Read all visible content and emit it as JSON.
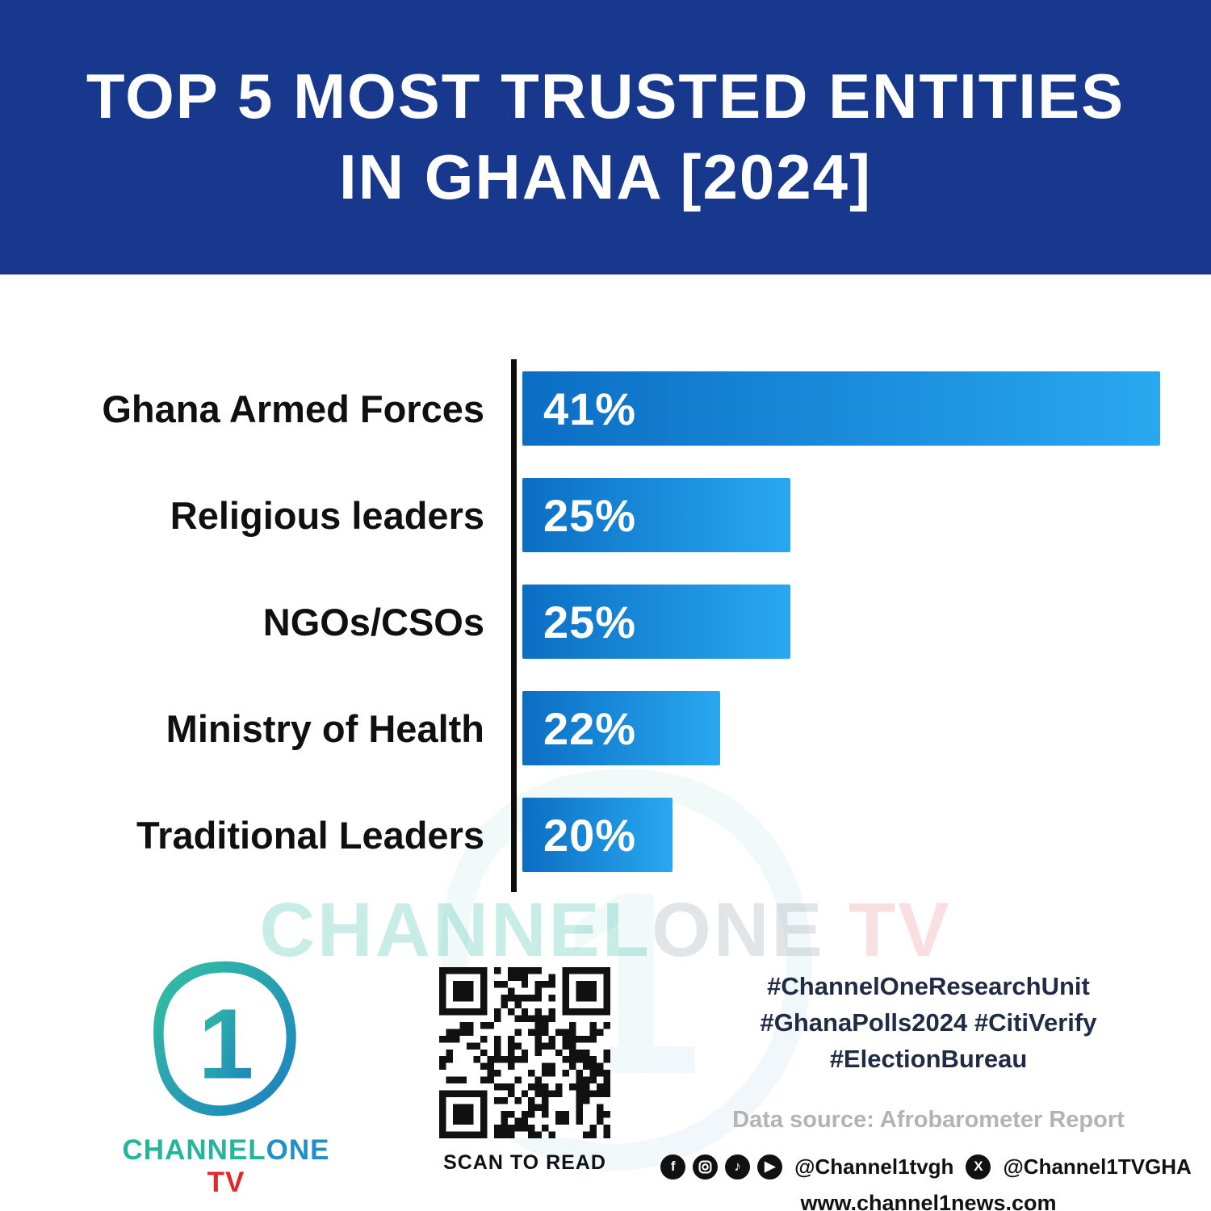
{
  "header": {
    "title_line1": "TOP 5 MOST TRUSTED ENTITIES",
    "title_line2": "IN GHANA [2024]"
  },
  "chart_data": {
    "type": "bar",
    "orientation": "horizontal",
    "title": "Top 5 Most Trusted Entities in Ghana [2024]",
    "categories": [
      "Ghana Armed Forces",
      "Religious leaders",
      "NGOs/CSOs",
      "Ministry of Health",
      "Traditional Leaders"
    ],
    "values": [
      41,
      25,
      25,
      22,
      20
    ],
    "value_labels": [
      "41%",
      "25%",
      "25%",
      "22%",
      "20%"
    ],
    "unit": "%",
    "xlim": [
      0,
      41
    ],
    "grid": false,
    "legend": false,
    "display_widths_pct": [
      100,
      42,
      42,
      31,
      23.5
    ]
  },
  "watermark": {
    "part1": "CHANNEL",
    "part2": "ONE",
    "part3": " TV"
  },
  "footer": {
    "brand": {
      "logo_symbol": "1",
      "wordmark_part1": "CHANNEL",
      "wordmark_part2": "ONE",
      "wordmark_part3": " TV"
    },
    "qr": {
      "caption": "SCAN TO READ"
    },
    "hashtags": [
      "#ChannelOneResearchUnit",
      "#GhanaPolls2024 #CitiVerify",
      "#ElectionBureau"
    ],
    "data_source": "Data source: Afrobarometer Report",
    "social": {
      "icons": [
        "facebook-icon",
        "instagram-icon",
        "tiktok-icon",
        "youtube-icon",
        "x-icon"
      ],
      "handle1": "@Channel1tvgh",
      "handle2": "@Channel1TVGHA"
    },
    "website": "www.channel1news.com"
  },
  "colors": {
    "header_blue": "#17388C",
    "bar_gradient_start": "#0B6EC4",
    "bar_gradient_end": "#29A8F0",
    "axis_black": "#0D0D0D",
    "brand_teal": "#26B59C",
    "brand_blue": "#1F8FC9",
    "brand_red": "#E2262C"
  }
}
